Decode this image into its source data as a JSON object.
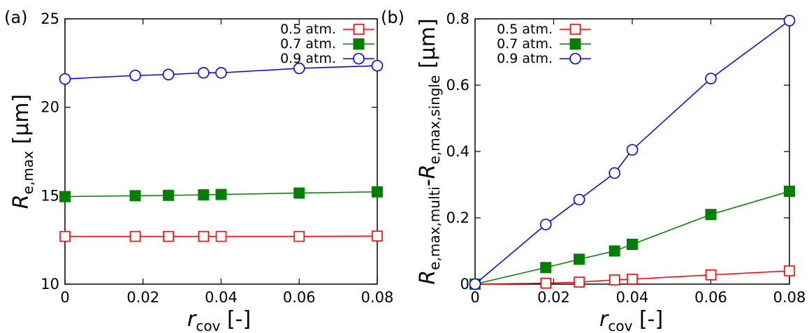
{
  "chart_data": [
    {
      "type": "line",
      "panel_label": "(a)",
      "xlabel": {
        "symbol": "r",
        "subscript": "cov",
        "unit": "[-]"
      },
      "ylabel": {
        "symbol": "R",
        "subscript": "e,max",
        "unit": "[μm]"
      },
      "xlim": [
        0,
        0.08
      ],
      "ylim": [
        10,
        25
      ],
      "xticks": [
        0,
        0.02,
        0.04,
        0.06,
        0.08
      ],
      "xtick_labels": [
        "0",
        "0.02",
        "0.04",
        "0.06",
        "0.08"
      ],
      "yticks": [
        10,
        15,
        20,
        25
      ],
      "ytick_labels": [
        "10",
        "15",
        "20",
        "25"
      ],
      "legend_position": "top-right",
      "x": [
        0,
        0.018,
        0.0265,
        0.0355,
        0.04,
        0.06,
        0.08
      ],
      "series": [
        {
          "name": "0.5 atm.",
          "color": "#ff0000",
          "marker": "open-square",
          "values": [
            12.7,
            12.7,
            12.7,
            12.7,
            12.7,
            12.7,
            12.72
          ]
        },
        {
          "name": "0.7 atm.",
          "color": "#008000",
          "marker": "filled-square",
          "values": [
            14.95,
            15.0,
            15.02,
            15.05,
            15.07,
            15.15,
            15.22
          ]
        },
        {
          "name": "0.9 atm.",
          "color": "#0000ff",
          "marker": "open-circle",
          "values": [
            21.6,
            21.8,
            21.85,
            21.95,
            21.95,
            22.2,
            22.35
          ]
        }
      ]
    },
    {
      "type": "line",
      "panel_label": "(b)",
      "xlabel": {
        "symbol": "r",
        "subscript": "cov",
        "unit": "[-]"
      },
      "ylabel": {
        "symbol": "R",
        "subscript": "e,max,multi",
        "symbol2": "R",
        "subscript2": "e,max,single",
        "unit": "[μm]"
      },
      "xlim": [
        0,
        0.08
      ],
      "ylim": [
        0,
        0.8
      ],
      "xticks": [
        0,
        0.02,
        0.04,
        0.06,
        0.08
      ],
      "xtick_labels": [
        "0",
        "0.02",
        "0.04",
        "0.06",
        "0.08"
      ],
      "yticks": [
        0,
        0.2,
        0.4,
        0.6,
        0.8
      ],
      "ytick_labels": [
        "0",
        "0.2",
        "0.4",
        "0.6",
        "0.8"
      ],
      "legend_position": "top-left",
      "x": [
        0,
        0.018,
        0.0265,
        0.0355,
        0.04,
        0.06,
        0.08
      ],
      "series": [
        {
          "name": "0.5 atm.",
          "color": "#ff0000",
          "marker": "open-square",
          "values": [
            0,
            0.003,
            0.006,
            0.013,
            0.015,
            0.028,
            0.04
          ]
        },
        {
          "name": "0.7 atm.",
          "color": "#008000",
          "marker": "filled-square",
          "values": [
            0,
            0.05,
            0.075,
            0.1,
            0.12,
            0.21,
            0.28
          ]
        },
        {
          "name": "0.9 atm.",
          "color": "#0000ff",
          "marker": "open-circle",
          "values": [
            0,
            0.18,
            0.255,
            0.335,
            0.405,
            0.62,
            0.795
          ]
        }
      ]
    }
  ]
}
